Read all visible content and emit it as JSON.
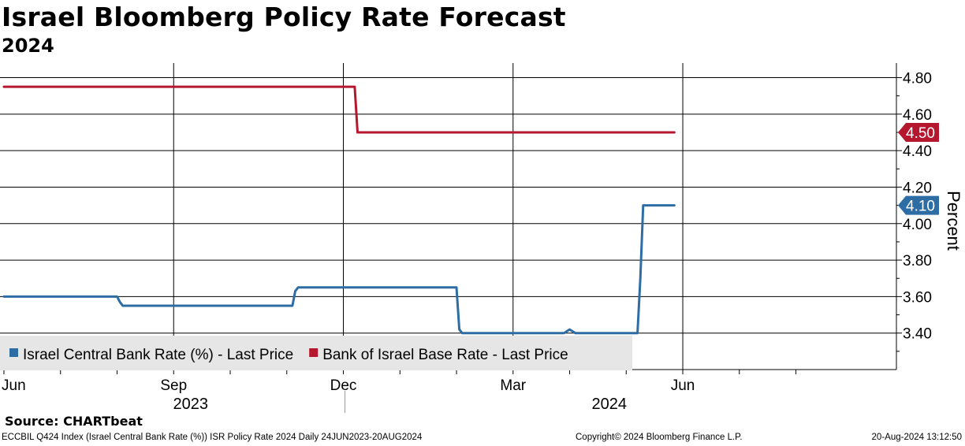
{
  "header": {
    "title": "Israel Bloomberg Policy Rate Forecast",
    "subtitle": "2024"
  },
  "footer": {
    "source": "Source: CHARTbeat",
    "index_info": "ECCBIL Q424 Index (Israel Central Bank Rate (%)) ISR Policy Rate 2024  Daily 24JUN2023-20AUG2024",
    "copyright": "Copyright© 2024 Bloomberg Finance L.P.",
    "timestamp": "20-Aug-2024 13:12:50"
  },
  "chart_data": {
    "type": "line",
    "title": "Israel Bloomberg Policy Rate Forecast",
    "subtitle": "2024",
    "xlabel": "",
    "ylabel": "Percent",
    "ylim": [
      3.2,
      4.88
    ],
    "yticks": [
      3.4,
      3.6,
      3.8,
      4.0,
      4.2,
      4.4,
      4.6,
      4.8
    ],
    "ytick_labels": [
      "3.40",
      "3.60",
      "3.80",
      "4.00",
      "4.20",
      "4.40",
      "4.60",
      "4.80"
    ],
    "x_unit": "months since 2023-06-01",
    "xlim": [
      0.0,
      15.4
    ],
    "month_ticks": [
      {
        "x": 0.0,
        "label": "Jun"
      },
      {
        "x": 1.0,
        "label": ""
      },
      {
        "x": 2.0,
        "label": ""
      },
      {
        "x": 3.0,
        "label": "Sep"
      },
      {
        "x": 4.0,
        "label": ""
      },
      {
        "x": 5.0,
        "label": ""
      },
      {
        "x": 6.0,
        "label": "Dec"
      },
      {
        "x": 7.0,
        "label": ""
      },
      {
        "x": 8.0,
        "label": ""
      },
      {
        "x": 9.0,
        "label": "Mar"
      },
      {
        "x": 10.0,
        "label": ""
      },
      {
        "x": 11.0,
        "label": ""
      },
      {
        "x": 12.0,
        "label": "Jun"
      },
      {
        "x": 13.0,
        "label": ""
      },
      {
        "x": 14.0,
        "label": ""
      }
    ],
    "vertical_gridlines_x": [
      3.0,
      6.0,
      9.0,
      12.0
    ],
    "year_labels": [
      {
        "x": 3.3,
        "label": "2023"
      },
      {
        "x": 10.7,
        "label": "2024"
      }
    ],
    "year_divider_x": 6.0,
    "grid": true,
    "legend_position": "bottom-left",
    "series": [
      {
        "name": "Israel Central Bank Rate (%) - Last Price",
        "color": "#2e6da4",
        "last_value": "4.10",
        "x": [
          0.0,
          2.0,
          2.05,
          2.1,
          5.1,
          5.15,
          5.2,
          8.0,
          8.05,
          8.1,
          9.9,
          10.0,
          10.1,
          11.2,
          11.25,
          11.3,
          11.85
        ],
        "y": [
          3.6,
          3.6,
          3.57,
          3.55,
          3.55,
          3.63,
          3.65,
          3.65,
          3.42,
          3.4,
          3.4,
          3.42,
          3.4,
          3.4,
          3.7,
          4.1,
          4.1
        ]
      },
      {
        "name": "Bank of Israel Base Rate - Last Price",
        "color": "#b5172f",
        "last_value": "4.50",
        "x": [
          0.0,
          6.2,
          6.25,
          11.85
        ],
        "y": [
          4.75,
          4.75,
          4.5,
          4.5
        ]
      }
    ]
  }
}
